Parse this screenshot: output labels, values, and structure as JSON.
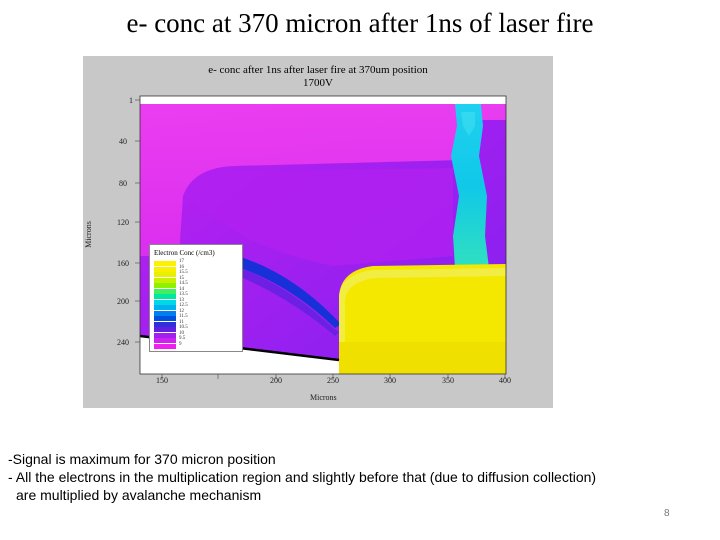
{
  "slide": {
    "title": "e- conc at 370 micron after 1ns of laser fire",
    "page_number": "8"
  },
  "plot": {
    "title_line1": "e- conc after 1ns after laser fire at 370um position",
    "title_line2": "1700V",
    "y_axis_label": "Microns",
    "x_axis_label": "Microns",
    "y_ticks": [
      "1",
      "40",
      "80",
      "120",
      "160",
      "200",
      "240"
    ],
    "x_ticks": [
      "150",
      "200",
      "250",
      "300",
      "350",
      "400"
    ],
    "legend": {
      "title": "Electron Conc (/cm3)",
      "entries": [
        {
          "label": "17",
          "color": "#fdf000"
        },
        {
          "label": "16",
          "color": "#f8f000"
        },
        {
          "label": "15.5",
          "color": "#e8f000"
        },
        {
          "label": "15",
          "color": "#c8f000"
        },
        {
          "label": "14.5",
          "color": "#90f000"
        },
        {
          "label": "14",
          "color": "#40f060"
        },
        {
          "label": "13.5",
          "color": "#00e8a0"
        },
        {
          "label": "13",
          "color": "#00d8e8"
        },
        {
          "label": "12.5",
          "color": "#00b0f0"
        },
        {
          "label": "12",
          "color": "#0080f0"
        },
        {
          "label": "11.5",
          "color": "#0050e0"
        },
        {
          "label": "11",
          "color": "#3030d8"
        },
        {
          "label": "10.5",
          "color": "#6020e0"
        },
        {
          "label": "10",
          "color": "#a020f0"
        },
        {
          "label": "9.5",
          "color": "#d020f0"
        },
        {
          "label": "9",
          "color": "#f020f0"
        }
      ]
    }
  },
  "notes": {
    "line1": "-Signal is maximum for 370 micron position",
    "line2": "- All the electrons in the multiplication region and slightly before that (due to diffusion collection)",
    "line3": "are multiplied by avalanche mechanism"
  }
}
